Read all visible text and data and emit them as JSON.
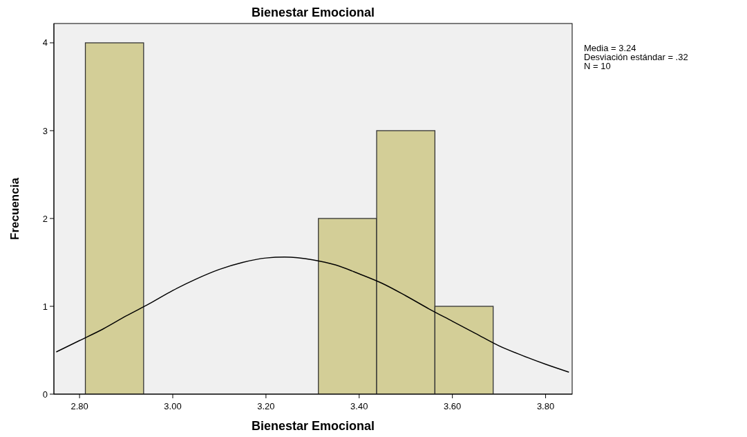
{
  "chart_data": {
    "type": "histogram",
    "title": "Bienestar Emocional",
    "xlabel": "Bienestar Emocional",
    "ylabel": "Frecuencia",
    "bins": [
      2.8125,
      2.9375,
      3.0625,
      3.1875,
      3.3125,
      3.4375,
      3.5625,
      3.6875
    ],
    "values": [
      4,
      0,
      0,
      0,
      2,
      3,
      1
    ],
    "color": "#d3ce97",
    "series": [
      {
        "type": "line",
        "color": "#000000",
        "x": [
          2.75,
          2.8,
          2.85,
          2.9,
          2.95,
          3.0,
          3.05,
          3.1,
          3.15,
          3.2,
          3.24,
          3.3,
          3.35,
          3.4,
          3.45,
          3.5,
          3.55,
          3.6,
          3.65,
          3.7,
          3.75,
          3.8,
          3.85
        ],
        "values": [
          0.48,
          0.61,
          0.74,
          0.89,
          1.03,
          1.18,
          1.31,
          1.42,
          1.5,
          1.55,
          1.56,
          1.53,
          1.47,
          1.37,
          1.26,
          1.12,
          0.97,
          0.83,
          0.69,
          0.55,
          0.44,
          0.34,
          0.25
        ]
      }
    ],
    "xlim": [
      2.745,
      3.857
    ],
    "xticks": [
      {
        "value": 2.8,
        "label": "2.80"
      },
      {
        "value": 3.0,
        "label": "3.00"
      },
      {
        "value": 3.2,
        "label": "3.20"
      },
      {
        "value": 3.4,
        "label": "3.40"
      },
      {
        "value": 3.6,
        "label": "3.60"
      },
      {
        "value": 3.8,
        "label": "3.80"
      }
    ],
    "ylim": [
      0,
      4.22
    ],
    "yticks": [
      0,
      1,
      2,
      3,
      4
    ],
    "annotations": [
      "Media = 3.24",
      "Desviación estándar = .32",
      "N = 10"
    ]
  }
}
